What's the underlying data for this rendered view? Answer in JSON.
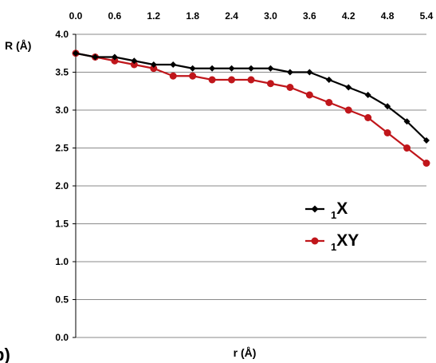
{
  "chart_data": {
    "type": "line",
    "panel_label": "b)",
    "xlabel": "r (Å)",
    "ylabel": "R (Å)",
    "x_axis_position": "top",
    "xlim": [
      0.0,
      5.4
    ],
    "ylim": [
      0.0,
      4.0
    ],
    "x_ticks": [
      "0.0",
      "0.6",
      "1.2",
      "1.8",
      "2.4",
      "3.0",
      "3.6",
      "4.2",
      "4.8",
      "5.4"
    ],
    "y_ticks": [
      "0.0",
      "0.5",
      "1.0",
      "1.5",
      "2.0",
      "2.5",
      "3.0",
      "3.5",
      "4.0"
    ],
    "grid": "horizontal",
    "legend_position": "right",
    "x": [
      0.0,
      0.3,
      0.6,
      0.9,
      1.2,
      1.5,
      1.8,
      2.1,
      2.4,
      2.7,
      3.0,
      3.3,
      3.6,
      3.9,
      4.2,
      4.5,
      4.8,
      5.1,
      5.4
    ],
    "series": [
      {
        "name_prefix": "1",
        "name_main": "X",
        "color": "#000000",
        "marker": "diamond",
        "values": [
          3.75,
          3.7,
          3.7,
          3.65,
          3.6,
          3.6,
          3.55,
          3.55,
          3.55,
          3.55,
          3.55,
          3.5,
          3.5,
          3.4,
          3.3,
          3.2,
          3.05,
          2.85,
          2.6
        ]
      },
      {
        "name_prefix": "1",
        "name_main": "XY",
        "color": "#c0161b",
        "marker": "circle",
        "values": [
          3.75,
          3.7,
          3.65,
          3.6,
          3.55,
          3.45,
          3.45,
          3.4,
          3.4,
          3.4,
          3.35,
          3.3,
          3.2,
          3.1,
          3.0,
          2.9,
          2.7,
          2.5,
          2.3
        ]
      }
    ]
  }
}
